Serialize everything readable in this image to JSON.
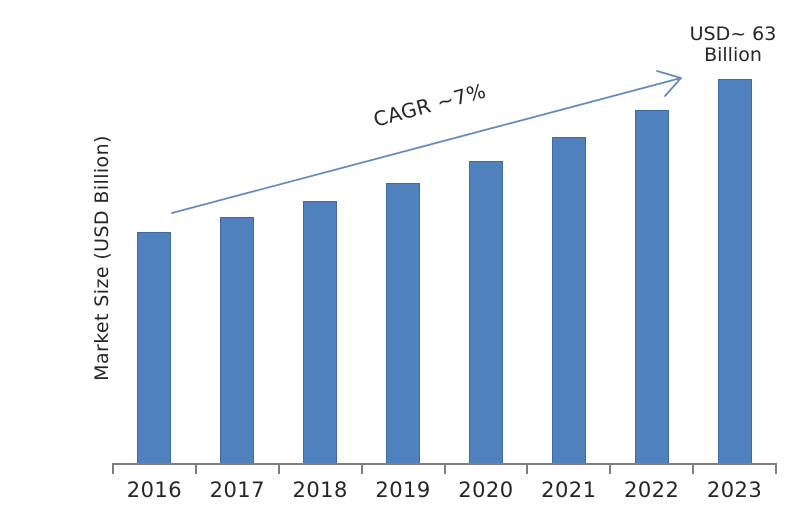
{
  "chart_data": {
    "type": "bar",
    "title": "",
    "xlabel": "",
    "ylabel": "Market Size (USD Billion)",
    "categories": [
      "2016",
      "2017",
      "2018",
      "2019",
      "2020",
      "2021",
      "2022",
      "2023"
    ],
    "values": [
      38,
      40.5,
      43,
      46,
      49.5,
      53.5,
      58,
      63
    ],
    "ylim": [
      0,
      63
    ],
    "grid": false,
    "legend": "none",
    "annotations": {
      "cagr": "CAGR ~7%",
      "end_value_line1": "USD~ 63",
      "end_value_line2": "Billion"
    },
    "icons": {
      "trend_arrow": "up-right-open-arrow"
    },
    "colors": {
      "bar": "#4f81bd",
      "bar_border": "#3e6ba3",
      "arrow": "#6688bb",
      "axis": "#7f7f7f",
      "text": "#262626"
    }
  }
}
